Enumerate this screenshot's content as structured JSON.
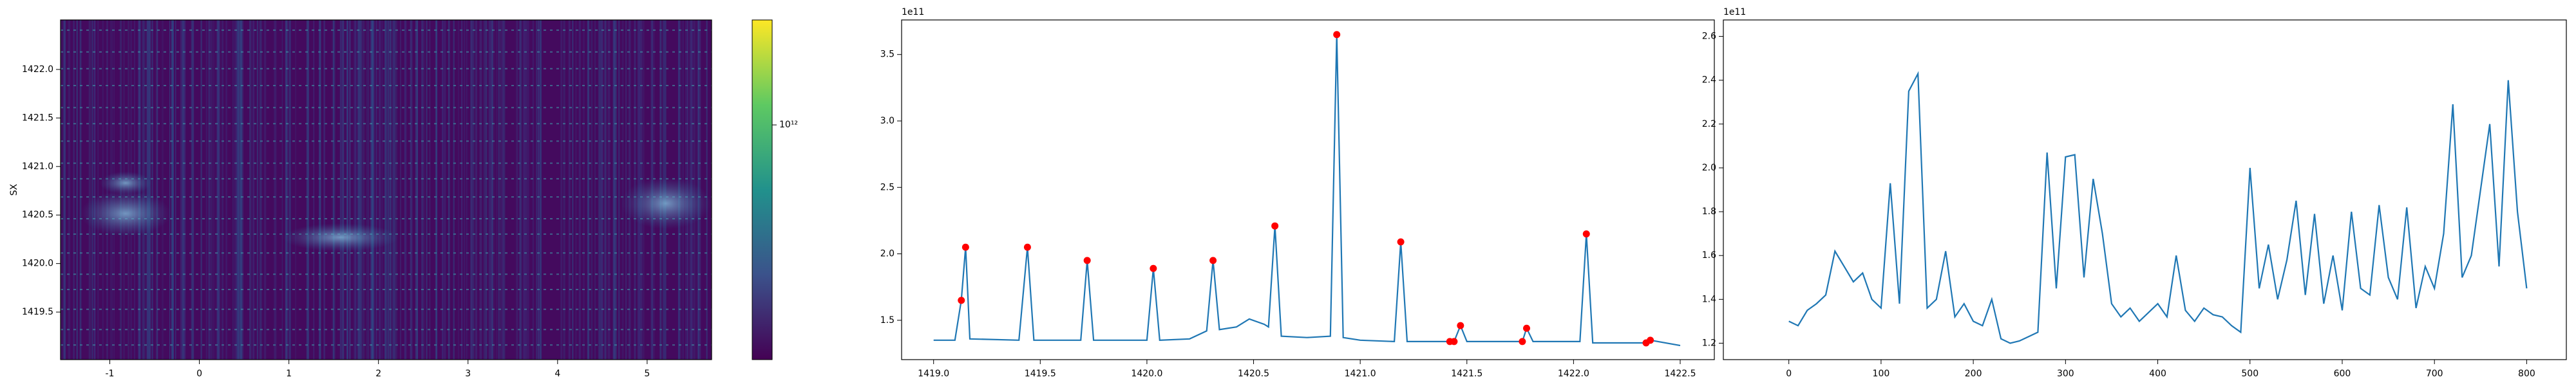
{
  "chart_data": [
    {
      "type": "heatmap",
      "ylabel": "SX",
      "xlim": [
        -1.55,
        5.72
      ],
      "xticks": [
        -1,
        0,
        1,
        2,
        3,
        4,
        5
      ],
      "ylim": [
        1419.01,
        1422.51
      ],
      "yticks": [
        1419.5,
        {
          "value": 1420,
          "label": "1420.0"
        },
        1420.5,
        {
          "value": 1421,
          "label": "1421.0"
        },
        1421.5,
        {
          "value": 1422,
          "label": "1422.0"
        }
      ],
      "clim": [
        100000000000,
        2800000000000
      ],
      "cscale": "log",
      "cticks": [
        {
          "value": 1000000000000,
          "label": "10¹²"
        }
      ]
    },
    {
      "type": "line",
      "color": "#1f77b4",
      "offset_text": "1e11",
      "xlim": [
        1418.85,
        1422.66
      ],
      "xticks": [
        {
          "value": 1419,
          "label": "1419.0"
        },
        1419.5,
        {
          "value": 1420,
          "label": "1420.0"
        },
        1420.5,
        {
          "value": 1421,
          "label": "1421.0"
        },
        1421.5,
        {
          "value": 1422,
          "label": "1422.0"
        },
        1422.5
      ],
      "ylim": [
        1.204,
        3.76
      ],
      "yticks": [
        1.5,
        {
          "value": 2,
          "label": "2.0"
        },
        2.5,
        {
          "value": 3,
          "label": "3.0"
        },
        3.5
      ],
      "x": [
        1419.0,
        1419.1,
        1419.13,
        1419.15,
        1419.17,
        1419.4,
        1419.44,
        1419.47,
        1419.69,
        1419.72,
        1419.75,
        1420.0,
        1420.03,
        1420.06,
        1420.2,
        1420.28,
        1420.31,
        1420.34,
        1420.42,
        1420.48,
        1420.55,
        1420.57,
        1420.6,
        1420.63,
        1420.75,
        1420.86,
        1420.89,
        1420.92,
        1421.0,
        1421.16,
        1421.19,
        1421.22,
        1421.42,
        1421.44,
        1421.47,
        1421.5,
        1421.76,
        1421.78,
        1421.81,
        1422.03,
        1422.06,
        1422.09,
        1422.34,
        1422.36,
        1422.5
      ],
      "values": [
        1.35,
        1.35,
        1.65,
        2.05,
        1.36,
        1.35,
        2.05,
        1.35,
        1.35,
        1.95,
        1.35,
        1.35,
        1.89,
        1.35,
        1.36,
        1.42,
        1.95,
        1.43,
        1.45,
        1.51,
        1.47,
        1.45,
        2.21,
        1.38,
        1.37,
        1.38,
        3.65,
        1.37,
        1.35,
        1.34,
        2.09,
        1.34,
        1.34,
        1.34,
        1.46,
        1.34,
        1.34,
        1.44,
        1.34,
        1.34,
        2.15,
        1.33,
        1.33,
        1.35,
        1.31
      ],
      "peaks": {
        "color": "red",
        "x": [
          1419.13,
          1419.15,
          1419.44,
          1419.72,
          1420.03,
          1420.31,
          1420.6,
          1420.89,
          1421.19,
          1421.42,
          1421.44,
          1421.47,
          1421.76,
          1421.78,
          1422.06,
          1422.34,
          1422.36
        ],
        "values": [
          1.65,
          2.05,
          2.05,
          1.95,
          1.89,
          1.95,
          2.21,
          3.65,
          2.09,
          1.34,
          1.34,
          1.46,
          1.34,
          1.44,
          2.15,
          1.33,
          1.35
        ]
      }
    },
    {
      "type": "line",
      "color": "#1f77b4",
      "offset_text": "1e11",
      "xlim": [
        -71,
        843
      ],
      "xticks": [
        0,
        100,
        200,
        300,
        400,
        500,
        600,
        700,
        800
      ],
      "ylim": [
        1.125,
        2.675
      ],
      "yticks": [
        1.2,
        1.4,
        1.6,
        1.8,
        {
          "value": 2,
          "label": "2.0"
        },
        2.2,
        2.4,
        2.6
      ],
      "x": [
        0,
        10,
        20,
        30,
        40,
        50,
        60,
        70,
        80,
        90,
        100,
        110,
        120,
        130,
        140,
        150,
        160,
        170,
        180,
        190,
        200,
        210,
        220,
        230,
        240,
        250,
        260,
        270,
        280,
        290,
        300,
        310,
        320,
        330,
        340,
        350,
        360,
        370,
        380,
        390,
        400,
        410,
        420,
        430,
        440,
        450,
        460,
        470,
        480,
        490,
        500,
        510,
        520,
        530,
        540,
        550,
        560,
        570,
        580,
        590,
        600,
        610,
        620,
        630,
        640,
        650,
        660,
        670,
        680,
        690,
        700,
        710,
        720,
        730,
        740,
        750,
        760,
        770,
        780,
        790,
        800
      ],
      "values": [
        1.3,
        1.28,
        1.35,
        1.38,
        1.42,
        1.62,
        1.55,
        1.48,
        1.52,
        1.4,
        1.36,
        1.93,
        1.38,
        2.35,
        2.43,
        1.36,
        1.4,
        1.62,
        1.32,
        1.38,
        1.3,
        1.28,
        1.4,
        1.22,
        1.2,
        1.21,
        1.23,
        1.25,
        2.07,
        1.45,
        2.05,
        2.06,
        1.5,
        1.95,
        1.7,
        1.38,
        1.32,
        1.36,
        1.3,
        1.34,
        1.38,
        1.32,
        1.6,
        1.35,
        1.3,
        1.36,
        1.33,
        1.32,
        1.28,
        1.25,
        2.0,
        1.45,
        1.65,
        1.4,
        1.58,
        1.85,
        1.42,
        1.79,
        1.38,
        1.6,
        1.35,
        1.8,
        1.45,
        1.42,
        1.83,
        1.5,
        1.4,
        1.82,
        1.36,
        1.55,
        1.45,
        1.7,
        2.29,
        1.5,
        1.6,
        1.9,
        2.2,
        1.55,
        2.4,
        1.8,
        1.45
      ]
    }
  ]
}
